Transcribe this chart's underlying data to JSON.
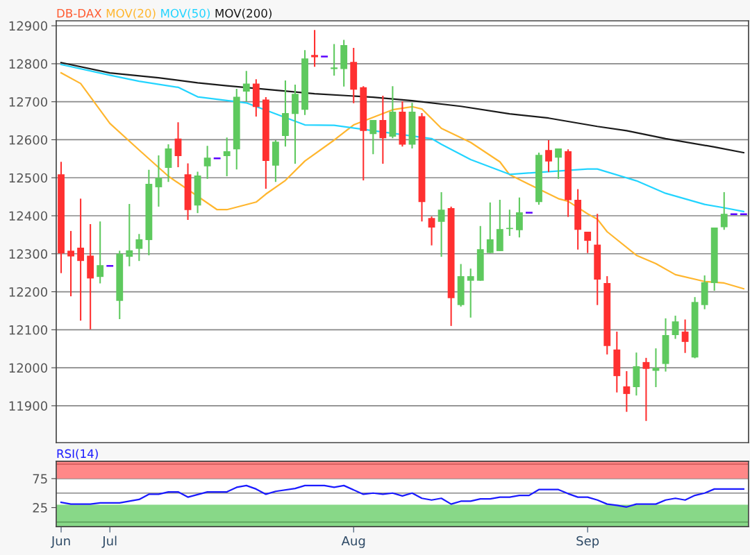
{
  "chart_data": [
    {
      "type": "candlestick",
      "title": "DB-DAX",
      "legend": "top left",
      "grid": "y",
      "tick_labels": "y",
      "categories": [
        null,
        null,
        null,
        null,
        null,
        null,
        null,
        null,
        null,
        null,
        null,
        null,
        null,
        null,
        null,
        null,
        null,
        null,
        null,
        null,
        null,
        null,
        null,
        null,
        null,
        null,
        null,
        null,
        null,
        null,
        null,
        null,
        null,
        null,
        null,
        null,
        null,
        null,
        null,
        null,
        null,
        null,
        null,
        null,
        null,
        null,
        null,
        null,
        null,
        null,
        null,
        null,
        null,
        null,
        null,
        null,
        null,
        null,
        null,
        null,
        null,
        null,
        null,
        null,
        null,
        null,
        null,
        null,
        null,
        null,
        null
      ],
      "ohlc": [
        [
          12509,
          12542,
          12249,
          12301
        ],
        [
          12308,
          12360,
          12188,
          12293
        ],
        [
          12316,
          12445,
          12124,
          12281
        ],
        [
          12295,
          12378,
          12101,
          12235
        ],
        [
          12239,
          12385,
          12222,
          12270
        ],
        [
          12268,
          12268,
          12268,
          12268
        ],
        [
          12176,
          12308,
          12128,
          12300
        ],
        [
          12292,
          12431,
          12267,
          12309
        ],
        [
          12313,
          12352,
          12281,
          12338
        ],
        [
          12336,
          12521,
          12296,
          12484
        ],
        [
          12475,
          12559,
          12424,
          12500
        ],
        [
          12526,
          12588,
          12489,
          12577
        ],
        [
          12603,
          12646,
          12528,
          12557
        ],
        [
          12509,
          12538,
          12389,
          12415
        ],
        [
          12427,
          12516,
          12407,
          12506
        ],
        [
          12530,
          12584,
          12497,
          12553
        ],
        [
          12551,
          12551,
          12551,
          12551
        ],
        [
          12557,
          12606,
          12504,
          12570
        ],
        [
          12575,
          12734,
          12522,
          12713
        ],
        [
          12727,
          12781,
          12701,
          12748
        ],
        [
          12748,
          12759,
          12661,
          12686
        ],
        [
          12706,
          12712,
          12471,
          12544
        ],
        [
          12532,
          12599,
          12489,
          12595
        ],
        [
          12610,
          12756,
          12582,
          12670
        ],
        [
          12668,
          12745,
          12537,
          12721
        ],
        [
          12679,
          12836,
          12665,
          12814
        ],
        [
          12823,
          12889,
          12792,
          12817
        ],
        [
          12819,
          12819,
          12819,
          12819
        ],
        [
          12786,
          12852,
          12769,
          12790
        ],
        [
          12786,
          12863,
          12740,
          12849
        ],
        [
          12805,
          12842,
          12696,
          12732
        ],
        [
          12738,
          12741,
          12493,
          12623
        ],
        [
          12615,
          12652,
          12562,
          12652
        ],
        [
          12652,
          12716,
          12537,
          12604
        ],
        [
          12608,
          12741,
          12604,
          12674
        ],
        [
          12674,
          12701,
          12582,
          12587
        ],
        [
          12587,
          12697,
          12577,
          12674
        ],
        [
          12662,
          12670,
          12385,
          12436
        ],
        [
          12394,
          12398,
          12322,
          12369
        ],
        [
          12384,
          12462,
          12292,
          12416
        ],
        [
          12420,
          12424,
          12110,
          12183
        ],
        [
          12165,
          12273,
          12161,
          12241
        ],
        [
          12229,
          12261,
          12132,
          12241
        ],
        [
          12229,
          12373,
          12229,
          12312
        ],
        [
          12302,
          12435,
          12302,
          12338
        ],
        [
          12307,
          12442,
          12307,
          12365
        ],
        [
          12365,
          12416,
          12347,
          12368
        ],
        [
          12362,
          12448,
          12343,
          12409
        ],
        [
          12408,
          12408,
          12408,
          12408
        ],
        [
          12436,
          12566,
          12429,
          12560
        ],
        [
          12573,
          12599,
          12515,
          12543
        ],
        [
          12553,
          12577,
          12497,
          12577
        ],
        [
          12570,
          12575,
          12397,
          12441
        ],
        [
          12442,
          12470,
          12311,
          12363
        ],
        [
          12358,
          12358,
          12302,
          12334
        ],
        [
          12324,
          12405,
          12165,
          12232
        ],
        [
          12223,
          12241,
          12035,
          12057
        ],
        [
          12048,
          12095,
          11935,
          11978
        ],
        [
          11951,
          11991,
          11884,
          11931
        ],
        [
          11949,
          12040,
          11927,
          12004
        ],
        [
          12015,
          12026,
          11860,
          11997
        ],
        [
          11992,
          12051,
          11949,
          12000
        ],
        [
          12010,
          12130,
          11990,
          12086
        ],
        [
          12086,
          12137,
          12076,
          12122
        ],
        [
          12095,
          12127,
          12039,
          12068
        ],
        [
          12027,
          12186,
          12025,
          12173
        ],
        [
          12165,
          12243,
          12154,
          12225
        ],
        [
          12223,
          12369,
          12203,
          12369
        ],
        [
          12370,
          12462,
          12363,
          12405
        ],
        [
          12404,
          12404,
          12404,
          12404
        ],
        [
          12404,
          12404,
          12404,
          12404
        ]
      ],
      "colors": [
        "#ff3030",
        "#ff3030",
        "#ff3030",
        "#ff3030",
        "#5ec95e",
        "#5a00ff",
        "#5ec95e",
        "#5ec95e",
        "#5ec95e",
        "#5ec95e",
        "#5ec95e",
        "#5ec95e",
        "#ff3030",
        "#ff3030",
        "#5ec95e",
        "#5ec95e",
        "#5a00ff",
        "#5ec95e",
        "#5ec95e",
        "#5ec95e",
        "#ff3030",
        "#ff3030",
        "#5ec95e",
        "#5ec95e",
        "#5ec95e",
        "#5ec95e",
        "#ff3030",
        "#5a00ff",
        "#5ec95e",
        "#5ec95e",
        "#ff3030",
        "#ff3030",
        "#5ec95e",
        "#ff3030",
        "#5ec95e",
        "#ff3030",
        "#5ec95e",
        "#ff3030",
        "#ff3030",
        "#5ec95e",
        "#ff3030",
        "#5ec95e",
        "#5ec95e",
        "#5ec95e",
        "#5ec95e",
        "#5ec95e",
        "#5ec95e",
        "#5ec95e",
        "#5a00ff",
        "#5ec95e",
        "#ff3030",
        "#5ec95e",
        "#ff3030",
        "#ff3030",
        "#ff3030",
        "#ff3030",
        "#ff3030",
        "#ff3030",
        "#ff3030",
        "#5ec95e",
        "#ff3030",
        "#5ec95e",
        "#5ec95e",
        "#5ec95e",
        "#ff3030",
        "#5ec95e",
        "#5ec95e",
        "#5ec95e",
        "#5ec95e",
        "#5a00ff",
        "#5a00ff"
      ],
      "series": [
        {
          "name": "MOV(20)",
          "type": "line",
          "color": "#ffb62e",
          "values": [
            12776,
            null,
            12748,
            null,
            null,
            12643,
            null,
            null,
            12573,
            null,
            null,
            12504,
            null,
            null,
            null,
            null,
            12416,
            12416,
            null,
            null,
            12436,
            12457,
            null,
            12493,
            null,
            12544,
            null,
            null,
            12599,
            null,
            12639,
            null,
            null,
            null,
            12679,
            null,
            12687,
            12681,
            null,
            12630,
            null,
            null,
            12593,
            null,
            null,
            12542,
            12508,
            null,
            null,
            null,
            null,
            12445,
            12438,
            null,
            12405,
            12391,
            12358,
            null,
            null,
            12296,
            null,
            12274,
            null,
            12245,
            null,
            null,
            12227,
            null,
            12223,
            null,
            12208
          ]
        },
        {
          "name": "MOV(50)",
          "type": "line",
          "color": "#22d4ff",
          "values": [
            12798,
            null,
            null,
            null,
            null,
            12770,
            null,
            null,
            12754,
            null,
            null,
            null,
            12738,
            null,
            12713,
            null,
            null,
            null,
            null,
            12697,
            null,
            null,
            null,
            null,
            null,
            12639,
            null,
            null,
            12638,
            null,
            null,
            null,
            null,
            null,
            null,
            null,
            null,
            null,
            12603,
            12588,
            null,
            null,
            12548,
            null,
            null,
            null,
            12509,
            null,
            null,
            null,
            null,
            null,
            null,
            null,
            12523,
            12523,
            null,
            null,
            null,
            12492,
            null,
            null,
            12459,
            null,
            null,
            null,
            12430,
            null,
            12421,
            null,
            12411
          ]
        },
        {
          "name": "MOV(200)",
          "type": "line",
          "color": "#1a1a1a",
          "values": [
            12803,
            null,
            null,
            null,
            null,
            12776,
            null,
            null,
            null,
            null,
            12763,
            null,
            null,
            null,
            12750,
            null,
            null,
            12742,
            null,
            null,
            null,
            null,
            null,
            null,
            null,
            null,
            12721,
            null,
            null,
            null,
            null,
            null,
            12712,
            null,
            null,
            null,
            12703,
            null,
            null,
            null,
            null,
            12688,
            null,
            null,
            null,
            null,
            12668,
            null,
            null,
            null,
            12657,
            null,
            null,
            null,
            null,
            12635,
            null,
            null,
            12624,
            null,
            null,
            null,
            12603,
            null,
            null,
            null,
            null,
            12581,
            null,
            null,
            12566
          ]
        }
      ],
      "ylim": [
        11803,
        12913
      ],
      "yticks": [
        11900,
        12000,
        12100,
        12200,
        12300,
        12400,
        12500,
        12600,
        12700,
        12800,
        12900
      ]
    },
    {
      "type": "line",
      "legend": "top left",
      "grid": "y",
      "categories": [
        "Jun",
        null,
        null,
        null,
        null,
        "Jul",
        null,
        null,
        null,
        null,
        null,
        null,
        null,
        null,
        null,
        null,
        null,
        null,
        null,
        null,
        null,
        null,
        null,
        null,
        null,
        null,
        null,
        null,
        null,
        null,
        "Aug",
        null,
        null,
        null,
        null,
        null,
        null,
        null,
        null,
        null,
        null,
        null,
        null,
        null,
        null,
        null,
        null,
        null,
        null,
        null,
        null,
        null,
        null,
        null,
        "Sep",
        null,
        null,
        null,
        null,
        null,
        null,
        null,
        null,
        null,
        null,
        null,
        null,
        null,
        null,
        null,
        null
      ],
      "series": [
        {
          "name": "RSI(14)",
          "color": "#1a1aff",
          "values": [
            34,
            31,
            null,
            31,
            33,
            null,
            33,
            null,
            39,
            48,
            48,
            52,
            52,
            43,
            null,
            52,
            null,
            52,
            60,
            63,
            57,
            48,
            53,
            null,
            58,
            63,
            null,
            63,
            60,
            63,
            null,
            48,
            50,
            48,
            50,
            45,
            50,
            41,
            38,
            41,
            31,
            36,
            36,
            40,
            40,
            43,
            43,
            46,
            46,
            56,
            56,
            56,
            49,
            43,
            43,
            38,
            31,
            29,
            26,
            31,
            31,
            31,
            38,
            41,
            38,
            46,
            50,
            57,
            57,
            57,
            57
          ]
        }
      ],
      "bands": [
        {
          "axis": "y",
          "from": 75,
          "to": 105,
          "color": "#ff8888"
        },
        {
          "axis": "y",
          "from": -8,
          "to": 30,
          "color": "#88d888"
        }
      ],
      "ref_lines": [
        {
          "axis": "y",
          "value": 0,
          "color": "#559955"
        },
        {
          "axis": "y",
          "value": 50,
          "color": "#888888"
        },
        {
          "axis": "y",
          "value": 100,
          "color": "#cc5555"
        }
      ],
      "ylim": [
        -8,
        105
      ],
      "yticks": [
        25,
        75
      ]
    }
  ]
}
